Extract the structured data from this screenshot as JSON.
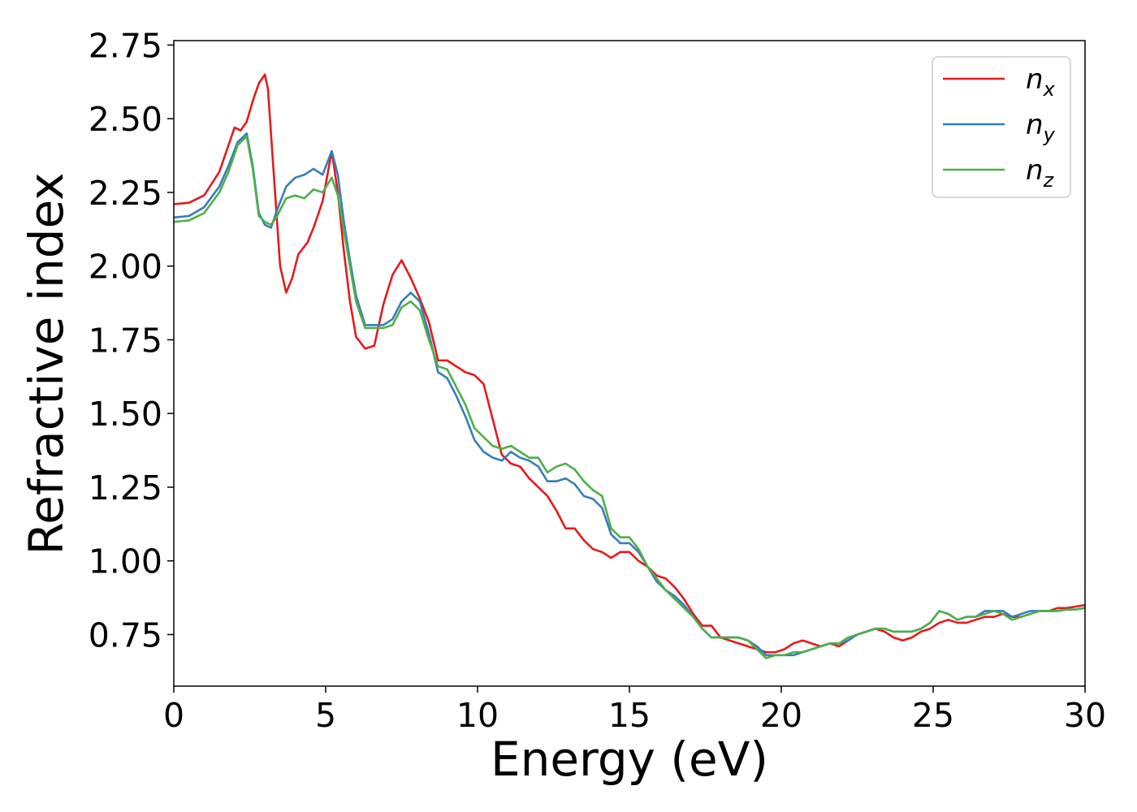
{
  "chart_data": {
    "type": "line",
    "title": "",
    "xlabel": "Energy (eV)",
    "ylabel": "Refractive index",
    "xlim": [
      0,
      30
    ],
    "ylim": [
      0.575,
      2.765
    ],
    "xticks": [
      0,
      5,
      10,
      15,
      20,
      25,
      30
    ],
    "xtick_labels": [
      "0",
      "5",
      "10",
      "15",
      "20",
      "25",
      "30"
    ],
    "yticks": [
      0.75,
      1.0,
      1.25,
      1.5,
      1.75,
      2.0,
      2.25,
      2.5,
      2.75
    ],
    "ytick_labels": [
      "0.75",
      "1.00",
      "1.25",
      "1.50",
      "1.75",
      "2.00",
      "2.25",
      "2.50",
      "2.75"
    ],
    "grid": false,
    "legend": {
      "position": "top-right"
    },
    "series": [
      {
        "name": "n",
        "sub": "x",
        "color": "#e41a1c",
        "points": [
          [
            0,
            2.21
          ],
          [
            0.5,
            2.215
          ],
          [
            1.0,
            2.24
          ],
          [
            1.5,
            2.32
          ],
          [
            1.8,
            2.41
          ],
          [
            2.0,
            2.47
          ],
          [
            2.2,
            2.46
          ],
          [
            2.4,
            2.49
          ],
          [
            2.6,
            2.56
          ],
          [
            2.8,
            2.62
          ],
          [
            3.0,
            2.65
          ],
          [
            3.1,
            2.6
          ],
          [
            3.3,
            2.3
          ],
          [
            3.5,
            2.0
          ],
          [
            3.7,
            1.91
          ],
          [
            3.9,
            1.96
          ],
          [
            4.1,
            2.04
          ],
          [
            4.4,
            2.08
          ],
          [
            4.6,
            2.13
          ],
          [
            4.9,
            2.22
          ],
          [
            5.2,
            2.39
          ],
          [
            5.4,
            2.25
          ],
          [
            5.6,
            2.05
          ],
          [
            5.8,
            1.88
          ],
          [
            6.0,
            1.76
          ],
          [
            6.3,
            1.72
          ],
          [
            6.6,
            1.73
          ],
          [
            6.9,
            1.87
          ],
          [
            7.2,
            1.97
          ],
          [
            7.5,
            2.02
          ],
          [
            7.8,
            1.96
          ],
          [
            8.1,
            1.89
          ],
          [
            8.4,
            1.81
          ],
          [
            8.7,
            1.68
          ],
          [
            9.0,
            1.68
          ],
          [
            9.3,
            1.66
          ],
          [
            9.6,
            1.64
          ],
          [
            9.9,
            1.63
          ],
          [
            10.2,
            1.6
          ],
          [
            10.5,
            1.48
          ],
          [
            10.8,
            1.36
          ],
          [
            11.1,
            1.33
          ],
          [
            11.4,
            1.32
          ],
          [
            11.7,
            1.28
          ],
          [
            12.0,
            1.25
          ],
          [
            12.3,
            1.22
          ],
          [
            12.6,
            1.17
          ],
          [
            12.9,
            1.11
          ],
          [
            13.2,
            1.11
          ],
          [
            13.5,
            1.07
          ],
          [
            13.8,
            1.04
          ],
          [
            14.1,
            1.03
          ],
          [
            14.4,
            1.01
          ],
          [
            14.7,
            1.03
          ],
          [
            15.0,
            1.03
          ],
          [
            15.3,
            1.0
          ],
          [
            15.6,
            0.98
          ],
          [
            15.9,
            0.95
          ],
          [
            16.2,
            0.94
          ],
          [
            16.5,
            0.91
          ],
          [
            16.8,
            0.87
          ],
          [
            17.1,
            0.82
          ],
          [
            17.4,
            0.78
          ],
          [
            17.7,
            0.78
          ],
          [
            18.0,
            0.74
          ],
          [
            18.3,
            0.73
          ],
          [
            18.6,
            0.72
          ],
          [
            18.9,
            0.71
          ],
          [
            19.2,
            0.7
          ],
          [
            19.5,
            0.69
          ],
          [
            19.8,
            0.69
          ],
          [
            20.1,
            0.7
          ],
          [
            20.4,
            0.72
          ],
          [
            20.7,
            0.73
          ],
          [
            21.0,
            0.72
          ],
          [
            21.3,
            0.71
          ],
          [
            21.6,
            0.72
          ],
          [
            21.9,
            0.71
          ],
          [
            22.2,
            0.73
          ],
          [
            22.5,
            0.75
          ],
          [
            22.8,
            0.76
          ],
          [
            23.1,
            0.77
          ],
          [
            23.4,
            0.76
          ],
          [
            23.7,
            0.74
          ],
          [
            24.0,
            0.73
          ],
          [
            24.3,
            0.74
          ],
          [
            24.6,
            0.76
          ],
          [
            24.9,
            0.77
          ],
          [
            25.2,
            0.79
          ],
          [
            25.5,
            0.8
          ],
          [
            25.8,
            0.79
          ],
          [
            26.1,
            0.79
          ],
          [
            26.4,
            0.8
          ],
          [
            26.7,
            0.81
          ],
          [
            27.0,
            0.81
          ],
          [
            27.3,
            0.82
          ],
          [
            27.6,
            0.81
          ],
          [
            27.9,
            0.81
          ],
          [
            28.2,
            0.82
          ],
          [
            28.5,
            0.83
          ],
          [
            28.8,
            0.83
          ],
          [
            29.1,
            0.84
          ],
          [
            29.4,
            0.84
          ],
          [
            29.7,
            0.845
          ],
          [
            30.0,
            0.85
          ]
        ]
      },
      {
        "name": "n",
        "sub": "y",
        "color": "#377eb8",
        "points": [
          [
            0,
            2.165
          ],
          [
            0.5,
            2.17
          ],
          [
            1.0,
            2.2
          ],
          [
            1.5,
            2.27
          ],
          [
            1.8,
            2.34
          ],
          [
            2.1,
            2.42
          ],
          [
            2.4,
            2.45
          ],
          [
            2.6,
            2.34
          ],
          [
            2.8,
            2.18
          ],
          [
            3.0,
            2.14
          ],
          [
            3.2,
            2.13
          ],
          [
            3.4,
            2.19
          ],
          [
            3.7,
            2.27
          ],
          [
            4.0,
            2.3
          ],
          [
            4.3,
            2.31
          ],
          [
            4.6,
            2.33
          ],
          [
            4.9,
            2.31
          ],
          [
            5.2,
            2.39
          ],
          [
            5.4,
            2.31
          ],
          [
            5.6,
            2.15
          ],
          [
            5.8,
            2.02
          ],
          [
            6.0,
            1.9
          ],
          [
            6.3,
            1.8
          ],
          [
            6.6,
            1.8
          ],
          [
            6.9,
            1.8
          ],
          [
            7.2,
            1.82
          ],
          [
            7.5,
            1.88
          ],
          [
            7.8,
            1.91
          ],
          [
            8.1,
            1.88
          ],
          [
            8.4,
            1.77
          ],
          [
            8.7,
            1.64
          ],
          [
            9.0,
            1.62
          ],
          [
            9.3,
            1.56
          ],
          [
            9.6,
            1.49
          ],
          [
            9.9,
            1.41
          ],
          [
            10.2,
            1.37
          ],
          [
            10.5,
            1.35
          ],
          [
            10.8,
            1.34
          ],
          [
            11.1,
            1.37
          ],
          [
            11.4,
            1.35
          ],
          [
            11.7,
            1.34
          ],
          [
            12.0,
            1.32
          ],
          [
            12.3,
            1.27
          ],
          [
            12.6,
            1.27
          ],
          [
            12.9,
            1.28
          ],
          [
            13.2,
            1.26
          ],
          [
            13.5,
            1.22
          ],
          [
            13.8,
            1.21
          ],
          [
            14.1,
            1.18
          ],
          [
            14.4,
            1.09
          ],
          [
            14.7,
            1.06
          ],
          [
            15.0,
            1.06
          ],
          [
            15.3,
            1.03
          ],
          [
            15.6,
            0.98
          ],
          [
            15.9,
            0.93
          ],
          [
            16.2,
            0.9
          ],
          [
            16.5,
            0.88
          ],
          [
            16.8,
            0.85
          ],
          [
            17.1,
            0.81
          ],
          [
            17.4,
            0.77
          ],
          [
            17.7,
            0.74
          ],
          [
            18.0,
            0.74
          ],
          [
            18.3,
            0.74
          ],
          [
            18.6,
            0.74
          ],
          [
            18.9,
            0.73
          ],
          [
            19.2,
            0.71
          ],
          [
            19.5,
            0.68
          ],
          [
            19.8,
            0.68
          ],
          [
            20.1,
            0.68
          ],
          [
            20.4,
            0.68
          ],
          [
            20.7,
            0.69
          ],
          [
            21.0,
            0.7
          ],
          [
            21.3,
            0.71
          ],
          [
            21.6,
            0.72
          ],
          [
            21.9,
            0.72
          ],
          [
            22.2,
            0.73
          ],
          [
            22.5,
            0.75
          ],
          [
            22.8,
            0.76
          ],
          [
            23.1,
            0.77
          ],
          [
            23.4,
            0.77
          ],
          [
            23.7,
            0.76
          ],
          [
            24.0,
            0.76
          ],
          [
            24.3,
            0.76
          ],
          [
            24.6,
            0.77
          ],
          [
            24.9,
            0.79
          ],
          [
            25.2,
            0.83
          ],
          [
            25.5,
            0.82
          ],
          [
            25.8,
            0.8
          ],
          [
            26.1,
            0.81
          ],
          [
            26.4,
            0.81
          ],
          [
            26.7,
            0.83
          ],
          [
            27.0,
            0.83
          ],
          [
            27.3,
            0.83
          ],
          [
            27.6,
            0.81
          ],
          [
            27.9,
            0.82
          ],
          [
            28.2,
            0.83
          ],
          [
            28.5,
            0.83
          ],
          [
            28.8,
            0.83
          ],
          [
            29.1,
            0.83
          ],
          [
            29.4,
            0.835
          ],
          [
            29.7,
            0.835
          ],
          [
            30.0,
            0.84
          ]
        ]
      },
      {
        "name": "n",
        "sub": "z",
        "color": "#4daf4a",
        "points": [
          [
            0,
            2.15
          ],
          [
            0.5,
            2.155
          ],
          [
            1.0,
            2.18
          ],
          [
            1.5,
            2.25
          ],
          [
            1.8,
            2.32
          ],
          [
            2.1,
            2.41
          ],
          [
            2.4,
            2.44
          ],
          [
            2.6,
            2.33
          ],
          [
            2.8,
            2.17
          ],
          [
            3.0,
            2.15
          ],
          [
            3.2,
            2.14
          ],
          [
            3.4,
            2.17
          ],
          [
            3.7,
            2.23
          ],
          [
            4.0,
            2.24
          ],
          [
            4.3,
            2.23
          ],
          [
            4.6,
            2.26
          ],
          [
            4.9,
            2.25
          ],
          [
            5.2,
            2.3
          ],
          [
            5.4,
            2.24
          ],
          [
            5.6,
            2.12
          ],
          [
            5.8,
            2.0
          ],
          [
            6.0,
            1.88
          ],
          [
            6.3,
            1.79
          ],
          [
            6.6,
            1.79
          ],
          [
            6.9,
            1.79
          ],
          [
            7.2,
            1.8
          ],
          [
            7.5,
            1.86
          ],
          [
            7.8,
            1.88
          ],
          [
            8.1,
            1.85
          ],
          [
            8.4,
            1.75
          ],
          [
            8.7,
            1.66
          ],
          [
            9.0,
            1.65
          ],
          [
            9.3,
            1.59
          ],
          [
            9.6,
            1.53
          ],
          [
            9.9,
            1.45
          ],
          [
            10.2,
            1.42
          ],
          [
            10.5,
            1.39
          ],
          [
            10.8,
            1.38
          ],
          [
            11.1,
            1.39
          ],
          [
            11.4,
            1.37
          ],
          [
            11.7,
            1.35
          ],
          [
            12.0,
            1.35
          ],
          [
            12.3,
            1.3
          ],
          [
            12.6,
            1.32
          ],
          [
            12.9,
            1.33
          ],
          [
            13.2,
            1.31
          ],
          [
            13.5,
            1.27
          ],
          [
            13.8,
            1.24
          ],
          [
            14.1,
            1.22
          ],
          [
            14.4,
            1.11
          ],
          [
            14.7,
            1.08
          ],
          [
            15.0,
            1.08
          ],
          [
            15.3,
            1.04
          ],
          [
            15.6,
            0.98
          ],
          [
            15.9,
            0.94
          ],
          [
            16.2,
            0.9
          ],
          [
            16.5,
            0.87
          ],
          [
            16.8,
            0.84
          ],
          [
            17.1,
            0.81
          ],
          [
            17.4,
            0.77
          ],
          [
            17.7,
            0.74
          ],
          [
            18.0,
            0.74
          ],
          [
            18.3,
            0.74
          ],
          [
            18.6,
            0.74
          ],
          [
            18.9,
            0.73
          ],
          [
            19.2,
            0.7
          ],
          [
            19.5,
            0.67
          ],
          [
            19.8,
            0.68
          ],
          [
            20.1,
            0.68
          ],
          [
            20.4,
            0.69
          ],
          [
            20.7,
            0.69
          ],
          [
            21.0,
            0.7
          ],
          [
            21.3,
            0.71
          ],
          [
            21.6,
            0.72
          ],
          [
            21.9,
            0.72
          ],
          [
            22.2,
            0.74
          ],
          [
            22.5,
            0.75
          ],
          [
            22.8,
            0.76
          ],
          [
            23.1,
            0.77
          ],
          [
            23.4,
            0.77
          ],
          [
            23.7,
            0.76
          ],
          [
            24.0,
            0.76
          ],
          [
            24.3,
            0.76
          ],
          [
            24.6,
            0.77
          ],
          [
            24.9,
            0.79
          ],
          [
            25.2,
            0.83
          ],
          [
            25.5,
            0.82
          ],
          [
            25.8,
            0.8
          ],
          [
            26.1,
            0.81
          ],
          [
            26.4,
            0.81
          ],
          [
            26.7,
            0.82
          ],
          [
            27.0,
            0.83
          ],
          [
            27.3,
            0.82
          ],
          [
            27.6,
            0.8
          ],
          [
            27.9,
            0.81
          ],
          [
            28.2,
            0.82
          ],
          [
            28.5,
            0.83
          ],
          [
            28.8,
            0.83
          ],
          [
            29.1,
            0.83
          ],
          [
            29.4,
            0.835
          ],
          [
            29.7,
            0.835
          ],
          [
            30.0,
            0.84
          ]
        ]
      }
    ]
  }
}
